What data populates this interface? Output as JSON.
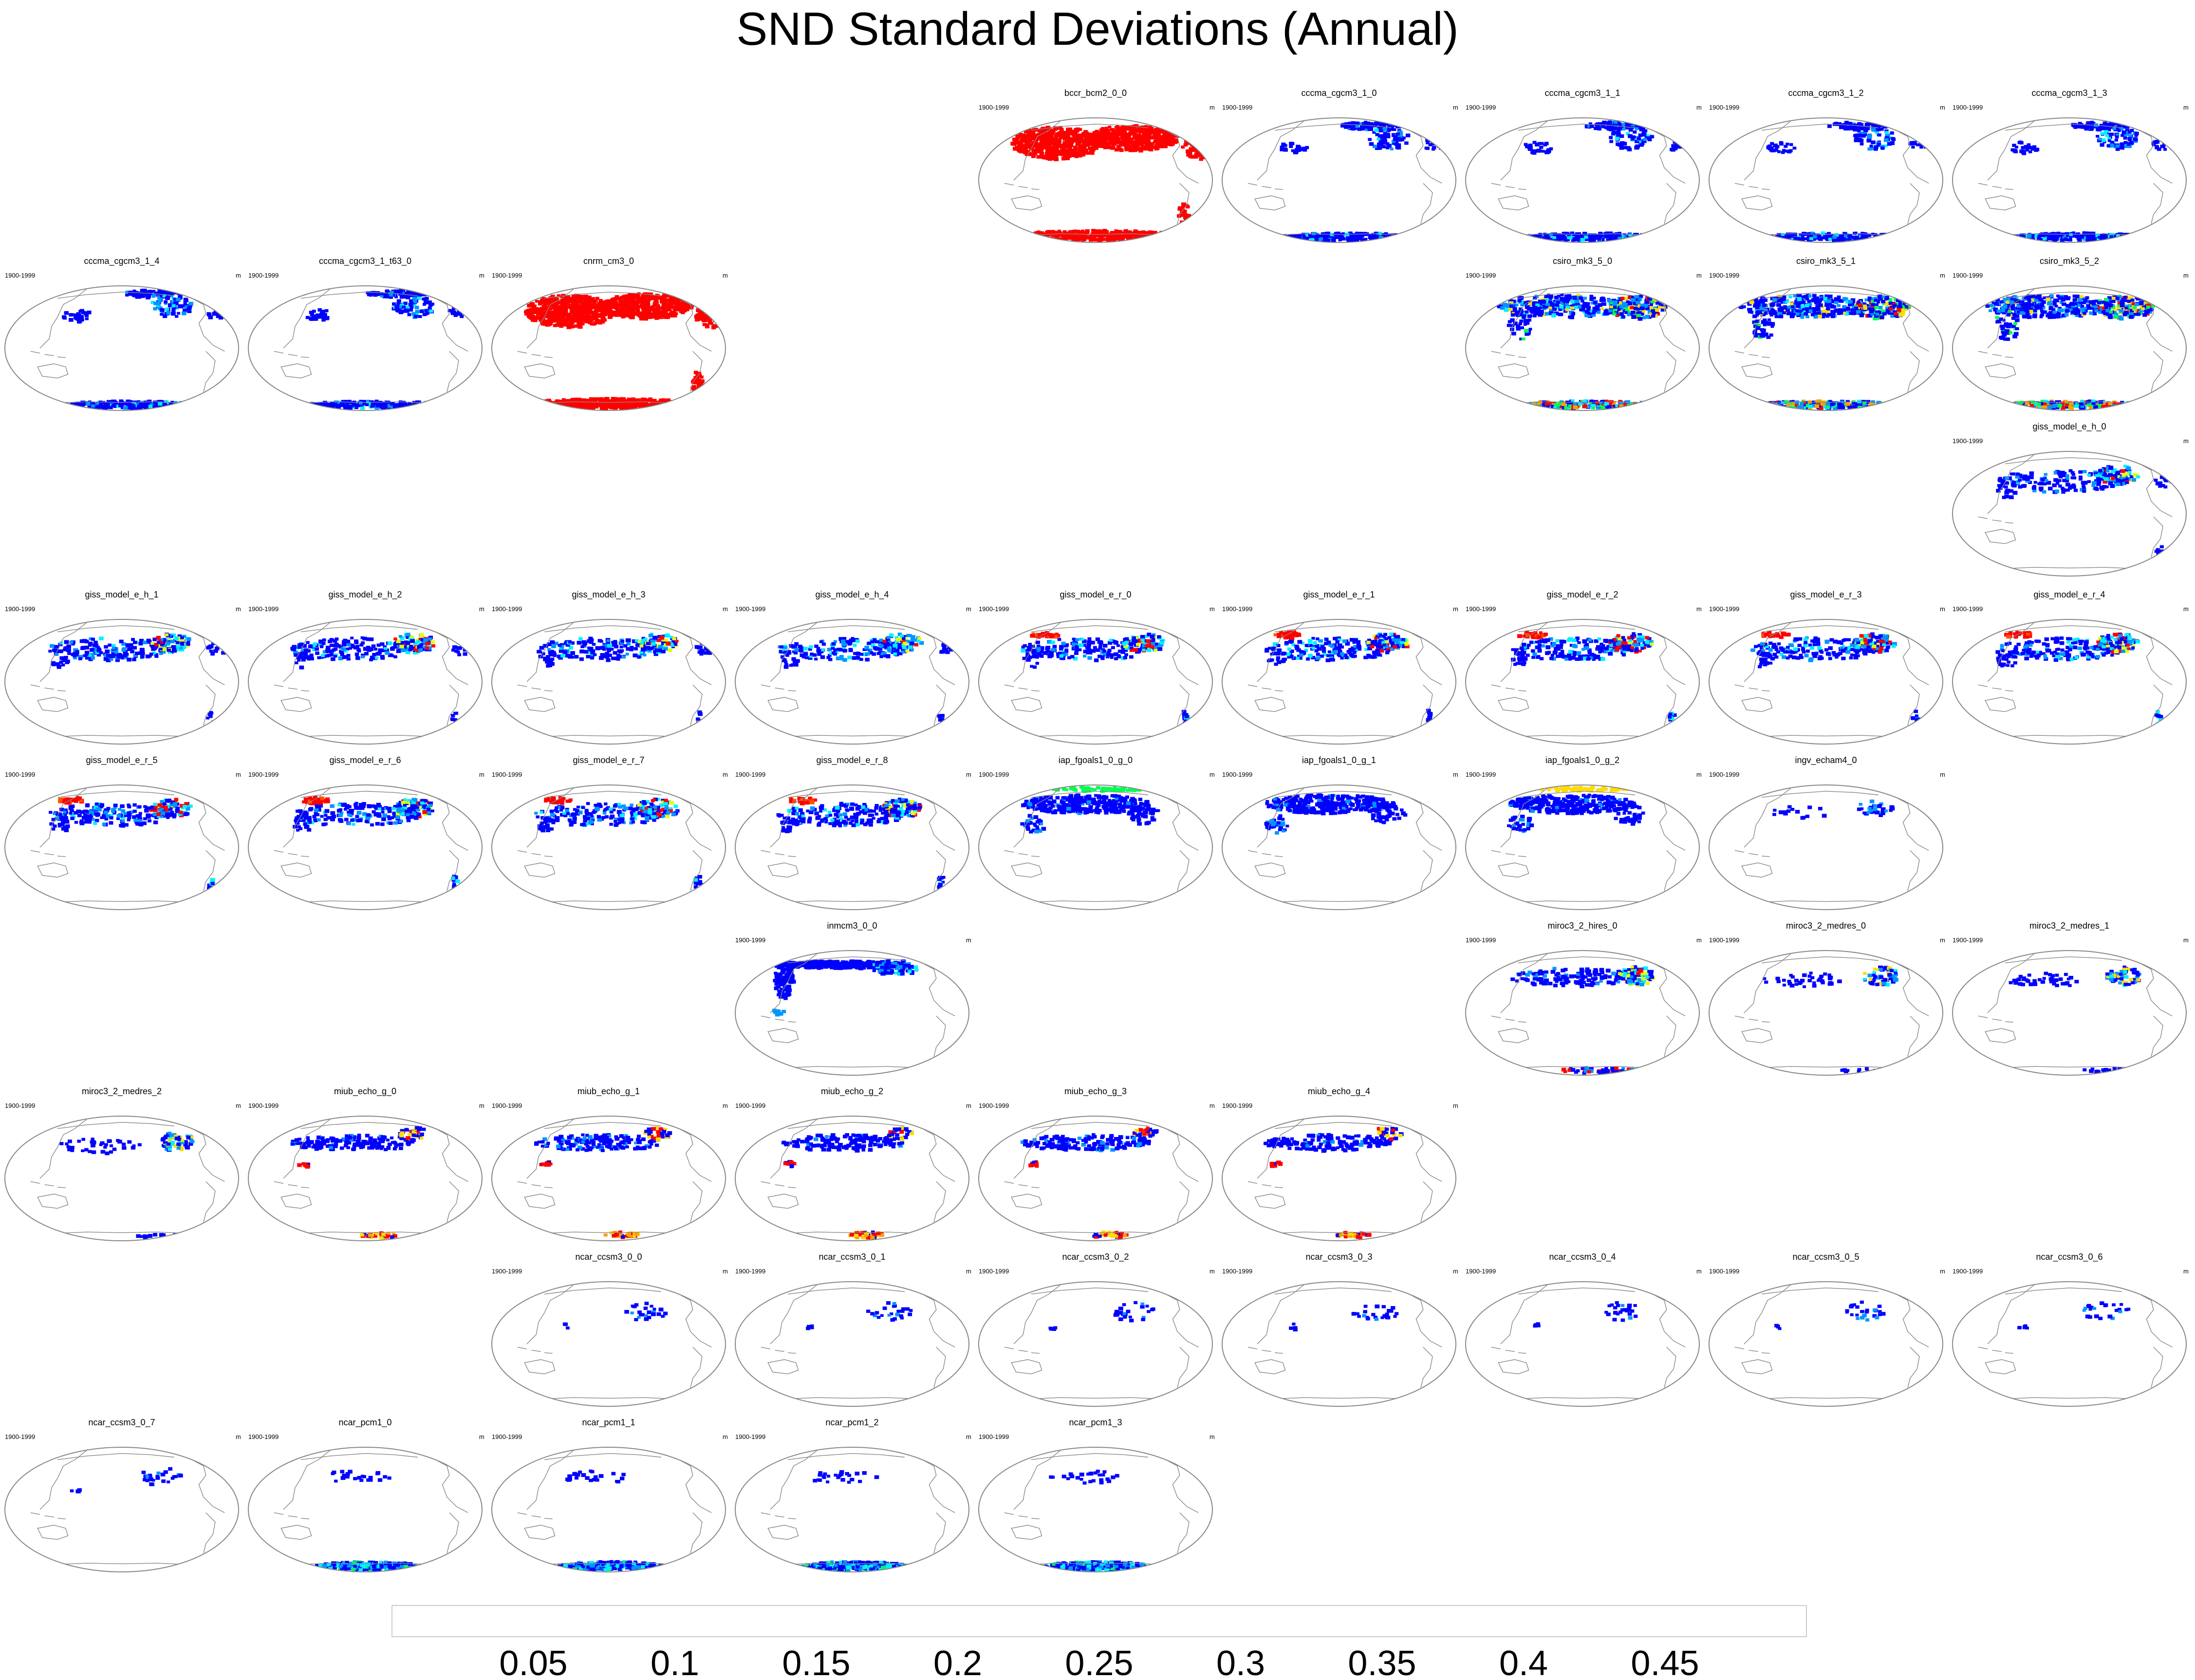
{
  "title": "SND Standard Deviations (Annual)",
  "panel_period": "1900-1999",
  "panel_units": "m",
  "colors": {
    "land_outline": "#888888",
    "panel_border": "#888888"
  },
  "colorbar": {
    "tick_labels": [
      "0.05",
      "0.1",
      "0.15",
      "0.2",
      "0.25",
      "0.3",
      "0.35",
      "0.4",
      "0.45"
    ],
    "bins": [
      "#ffffff",
      "#0000ff",
      "#0096ff",
      "#00f0ff",
      "#00ff50",
      "#e6ff00",
      "#ffdc00",
      "#ffa000",
      "#ff5000",
      "#ff0000"
    ]
  },
  "panels": [
    {
      "name": "bccr_bcm2_0_0",
      "row": 0,
      "col": 4,
      "pattern": "saturated"
    },
    {
      "name": "cccma_cgcm3_1_0",
      "row": 0,
      "col": 5,
      "pattern": "blue_nh_sh"
    },
    {
      "name": "cccma_cgcm3_1_1",
      "row": 0,
      "col": 6,
      "pattern": "blue_nh_sh"
    },
    {
      "name": "cccma_cgcm3_1_2",
      "row": 0,
      "col": 7,
      "pattern": "blue_nh_sh"
    },
    {
      "name": "cccma_cgcm3_1_3",
      "row": 0,
      "col": 8,
      "pattern": "blue_nh_sh"
    },
    {
      "name": "cccma_cgcm3_1_4",
      "row": 1,
      "col": 0,
      "pattern": "blue_nh_sh"
    },
    {
      "name": "cccma_cgcm3_1_t63_0",
      "row": 1,
      "col": 1,
      "pattern": "blue_nh_sh"
    },
    {
      "name": "cnrm_cm3_0",
      "row": 1,
      "col": 2,
      "pattern": "saturated"
    },
    {
      "name": "csiro_mk3_5_0",
      "row": 1,
      "col": 6,
      "pattern": "csiro"
    },
    {
      "name": "csiro_mk3_5_1",
      "row": 1,
      "col": 7,
      "pattern": "csiro"
    },
    {
      "name": "csiro_mk3_5_2",
      "row": 1,
      "col": 8,
      "pattern": "csiro"
    },
    {
      "name": "giss_model_e_h_0",
      "row": 2,
      "col": 8,
      "pattern": "giss_h"
    },
    {
      "name": "giss_model_e_h_1",
      "row": 3,
      "col": 0,
      "pattern": "giss_h"
    },
    {
      "name": "giss_model_e_h_2",
      "row": 3,
      "col": 1,
      "pattern": "giss_h"
    },
    {
      "name": "giss_model_e_h_3",
      "row": 3,
      "col": 2,
      "pattern": "giss_h"
    },
    {
      "name": "giss_model_e_h_4",
      "row": 3,
      "col": 3,
      "pattern": "giss_h"
    },
    {
      "name": "giss_model_e_r_0",
      "row": 3,
      "col": 4,
      "pattern": "giss_r"
    },
    {
      "name": "giss_model_e_r_1",
      "row": 3,
      "col": 5,
      "pattern": "giss_r"
    },
    {
      "name": "giss_model_e_r_2",
      "row": 3,
      "col": 6,
      "pattern": "giss_r"
    },
    {
      "name": "giss_model_e_r_3",
      "row": 3,
      "col": 7,
      "pattern": "giss_r"
    },
    {
      "name": "giss_model_e_r_4",
      "row": 3,
      "col": 8,
      "pattern": "giss_r"
    },
    {
      "name": "giss_model_e_r_5",
      "row": 4,
      "col": 0,
      "pattern": "giss_r"
    },
    {
      "name": "giss_model_e_r_6",
      "row": 4,
      "col": 1,
      "pattern": "giss_r"
    },
    {
      "name": "giss_model_e_r_7",
      "row": 4,
      "col": 2,
      "pattern": "giss_r"
    },
    {
      "name": "giss_model_e_r_8",
      "row": 4,
      "col": 3,
      "pattern": "giss_r"
    },
    {
      "name": "iap_fgoals1_0_g_0",
      "row": 4,
      "col": 4,
      "pattern": "iap_green"
    },
    {
      "name": "iap_fgoals1_0_g_1",
      "row": 4,
      "col": 5,
      "pattern": "iap"
    },
    {
      "name": "iap_fgoals1_0_g_2",
      "row": 4,
      "col": 6,
      "pattern": "iap_yellow"
    },
    {
      "name": "ingv_echam4_0",
      "row": 4,
      "col": 7,
      "pattern": "sparse"
    },
    {
      "name": "inmcm3_0_0",
      "row": 5,
      "col": 3,
      "pattern": "inm"
    },
    {
      "name": "miroc3_2_hires_0",
      "row": 5,
      "col": 6,
      "pattern": "miroc"
    },
    {
      "name": "miroc3_2_medres_0",
      "row": 5,
      "col": 7,
      "pattern": "miroc_sparse"
    },
    {
      "name": "miroc3_2_medres_1",
      "row": 5,
      "col": 8,
      "pattern": "miroc_sparse"
    },
    {
      "name": "miroc3_2_medres_2",
      "row": 6,
      "col": 0,
      "pattern": "miroc_sparse"
    },
    {
      "name": "miub_echo_g_0",
      "row": 6,
      "col": 1,
      "pattern": "miub"
    },
    {
      "name": "miub_echo_g_1",
      "row": 6,
      "col": 2,
      "pattern": "miub"
    },
    {
      "name": "miub_echo_g_2",
      "row": 6,
      "col": 3,
      "pattern": "miub"
    },
    {
      "name": "miub_echo_g_3",
      "row": 6,
      "col": 4,
      "pattern": "miub"
    },
    {
      "name": "miub_echo_g_4",
      "row": 6,
      "col": 5,
      "pattern": "miub"
    },
    {
      "name": "ncar_ccsm3_0_0",
      "row": 7,
      "col": 2,
      "pattern": "ncar"
    },
    {
      "name": "ncar_ccsm3_0_1",
      "row": 7,
      "col": 3,
      "pattern": "ncar"
    },
    {
      "name": "ncar_ccsm3_0_2",
      "row": 7,
      "col": 4,
      "pattern": "ncar"
    },
    {
      "name": "ncar_ccsm3_0_3",
      "row": 7,
      "col": 5,
      "pattern": "ncar"
    },
    {
      "name": "ncar_ccsm3_0_4",
      "row": 7,
      "col": 6,
      "pattern": "ncar"
    },
    {
      "name": "ncar_ccsm3_0_5",
      "row": 7,
      "col": 7,
      "pattern": "ncar"
    },
    {
      "name": "ncar_ccsm3_0_6",
      "row": 7,
      "col": 8,
      "pattern": "ncar"
    },
    {
      "name": "ncar_ccsm3_0_7",
      "row": 8,
      "col": 0,
      "pattern": "ncar"
    },
    {
      "name": "ncar_pcm1_0",
      "row": 8,
      "col": 1,
      "pattern": "pcm"
    },
    {
      "name": "ncar_pcm1_1",
      "row": 8,
      "col": 2,
      "pattern": "pcm"
    },
    {
      "name": "ncar_pcm1_2",
      "row": 8,
      "col": 3,
      "pattern": "pcm"
    },
    {
      "name": "ncar_pcm1_3",
      "row": 8,
      "col": 4,
      "pattern": "pcm"
    }
  ]
}
